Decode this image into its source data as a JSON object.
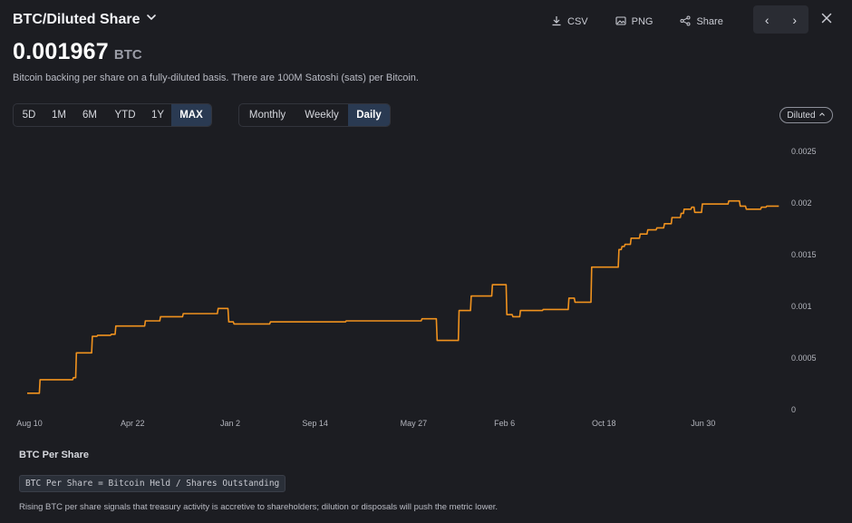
{
  "header": {
    "title": "BTC/Diluted Share",
    "value": "0.001967",
    "unit": "BTC",
    "description": "Bitcoin backing per share on a fully-diluted basis. There are 100M Satoshi (sats) per Bitcoin."
  },
  "toolbar": {
    "csv_label": "CSV",
    "png_label": "PNG",
    "share_label": "Share",
    "prev_glyph": "‹",
    "next_glyph": "›"
  },
  "range_buttons": [
    {
      "label": "5D",
      "active": false
    },
    {
      "label": "1M",
      "active": false
    },
    {
      "label": "6M",
      "active": false
    },
    {
      "label": "YTD",
      "active": false
    },
    {
      "label": "1Y",
      "active": false
    },
    {
      "label": "MAX",
      "active": true
    }
  ],
  "interval_buttons": [
    {
      "label": "Monthly",
      "active": false
    },
    {
      "label": "Weekly",
      "active": false
    },
    {
      "label": "Daily",
      "active": true
    }
  ],
  "diluted_label": "Diluted",
  "footer": {
    "section_title": "BTC Per Share",
    "formula": "BTC Per Share = Bitcoin Held / Shares Outstanding",
    "note": "Rising BTC per share signals that treasury activity is accretive to shareholders; dilution or disposals will push the metric lower."
  },
  "colors": {
    "background": "#1c1d22",
    "line": "#f0921e",
    "active_segment": "#2a3a52"
  },
  "chart_data": {
    "type": "line",
    "title": "",
    "xlabel": "",
    "ylabel": "",
    "ylim": [
      0,
      0.0025
    ],
    "xlim": [
      0,
      1000
    ],
    "y_ticks": [
      0,
      0.0005,
      0.001,
      0.0015,
      0.002,
      0.0025
    ],
    "y_tick_labels": [
      "0",
      "0.0005",
      "0.001",
      "0.0015",
      "0.002",
      "0.0025"
    ],
    "x_ticks": [
      {
        "pos": 3,
        "label": "Aug 10"
      },
      {
        "pos": 139,
        "label": "Apr 22"
      },
      {
        "pos": 268,
        "label": "Jan 2"
      },
      {
        "pos": 380,
        "label": "Sep 14"
      },
      {
        "pos": 510,
        "label": "May 27"
      },
      {
        "pos": 630,
        "label": "Feb 6"
      },
      {
        "pos": 761,
        "label": "Oct 18"
      },
      {
        "pos": 892,
        "label": "Jun 30"
      }
    ],
    "y_axis_position": "right",
    "grid": false,
    "legend": "none",
    "series": [
      {
        "x": [
          0,
          16,
          17,
          60,
          61,
          64,
          65,
          85,
          86,
          92,
          93,
          110,
          111,
          116,
          117,
          155,
          156,
          175,
          176,
          205,
          206,
          251,
          252,
          265,
          266,
          272,
          273,
          320,
          321,
          420,
          421,
          520,
          521,
          540,
          541,
          569,
          570,
          585,
          586,
          613,
          614,
          632,
          633,
          640,
          641,
          650,
          651,
          680,
          681,
          714,
          715,
          722,
          723,
          744,
          745,
          780,
          781,
          784,
          785,
          788,
          789,
          796,
          797,
          808,
          809,
          818,
          819,
          830,
          831,
          840,
          841,
          850,
          851,
          862,
          863,
          866,
          867,
          876,
          877,
          880,
          881,
          890,
          891,
          925,
          926,
          940,
          941,
          948,
          949,
          968,
          969,
          975,
          976,
          992
        ],
        "y": [
          0.00016,
          0.00016,
          0.00029,
          0.00029,
          0.00031,
          0.00031,
          0.00055,
          0.00055,
          0.00071,
          0.00071,
          0.00072,
          0.00072,
          0.00073,
          0.00073,
          0.00081,
          0.00081,
          0.00086,
          0.00086,
          0.0009,
          0.0009,
          0.00093,
          0.00093,
          0.00098,
          0.00098,
          0.00085,
          0.00085,
          0.00083,
          0.00083,
          0.00085,
          0.00085,
          0.00086,
          0.00086,
          0.00088,
          0.00088,
          0.00067,
          0.00067,
          0.00096,
          0.00096,
          0.0011,
          0.0011,
          0.00121,
          0.00121,
          0.00092,
          0.00092,
          0.0009,
          0.0009,
          0.00096,
          0.00096,
          0.00097,
          0.00097,
          0.00108,
          0.00108,
          0.00104,
          0.00104,
          0.00138,
          0.00138,
          0.00155,
          0.00155,
          0.00158,
          0.00158,
          0.0016,
          0.0016,
          0.00166,
          0.00166,
          0.0017,
          0.0017,
          0.00174,
          0.00174,
          0.00176,
          0.00176,
          0.0018,
          0.0018,
          0.00186,
          0.00186,
          0.0019,
          0.0019,
          0.00194,
          0.00194,
          0.00196,
          0.00196,
          0.00191,
          0.00191,
          0.00199,
          0.00199,
          0.00202,
          0.00202,
          0.00197,
          0.00197,
          0.00194,
          0.00194,
          0.00196,
          0.00196,
          0.00197,
          0.00197
        ]
      }
    ]
  }
}
